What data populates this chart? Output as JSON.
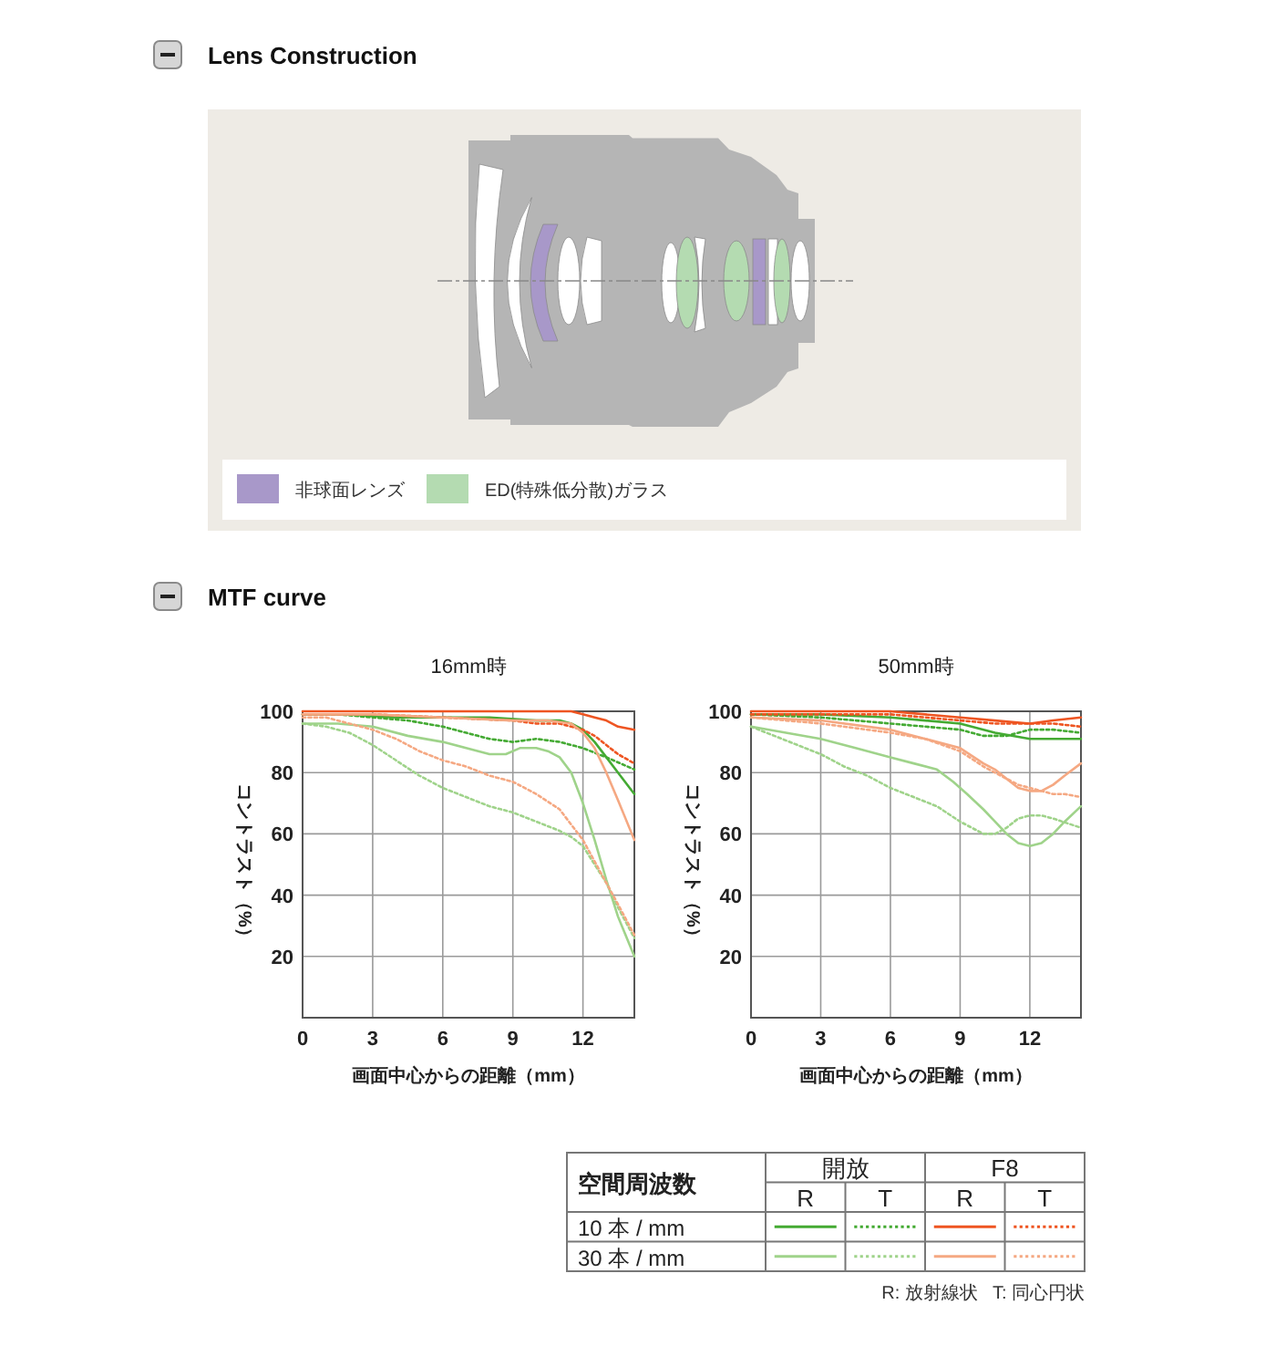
{
  "chart_data": [
    {
      "type": "other",
      "title": "Lens Construction",
      "annotations": [
        "非球面レンズ",
        "ED(特殊低分散)ガラス"
      ]
    },
    {
      "type": "line",
      "title": "MTF curve",
      "subtitle": "16mm時",
      "xlabel": "画面中心からの距離（mm）",
      "ylabel": "コントラスト（%）",
      "xlim": [
        0,
        14.2
      ],
      "ylim": [
        0,
        100
      ],
      "xticks": [
        0,
        3,
        6,
        9,
        12
      ],
      "yticks": [
        20,
        40,
        60,
        80,
        100
      ],
      "grid": true,
      "series": [
        {
          "color": "#44aa33",
          "line_style": "solid",
          "x": [
            0,
            2,
            4,
            6,
            8,
            10,
            11,
            11.5,
            12,
            12.5,
            13,
            13.5,
            14.2
          ],
          "values": [
            99,
            99,
            98,
            98,
            98,
            97,
            97,
            96,
            94,
            90,
            85,
            80,
            73
          ]
        },
        {
          "color": "#44aa33",
          "line_style": "dotted",
          "x": [
            0,
            1.5,
            3,
            4.5,
            6,
            7,
            8,
            9,
            10,
            11,
            12,
            13,
            14.2
          ],
          "values": [
            99,
            99,
            98,
            97,
            95,
            93,
            91,
            90,
            91,
            90,
            88,
            85,
            81
          ]
        },
        {
          "color": "#ee5522",
          "line_style": "solid",
          "x": [
            0,
            3,
            6,
            9,
            11,
            11.5,
            12,
            12.5,
            13,
            13.5,
            14.2
          ],
          "values": [
            100,
            100,
            100,
            100,
            100,
            100,
            99,
            98,
            97,
            95,
            94
          ]
        },
        {
          "color": "#ee5522",
          "line_style": "dotted",
          "x": [
            0,
            3,
            6,
            9,
            10,
            11,
            11.5,
            12,
            12.5,
            13,
            13.5,
            14.2
          ],
          "values": [
            99,
            99,
            98,
            97,
            96,
            96,
            95,
            94,
            92,
            89,
            86,
            83
          ]
        },
        {
          "color": "#9fd38a",
          "line_style": "solid",
          "x": [
            0,
            1.5,
            3,
            4.5,
            6,
            7,
            8,
            8.7,
            9.3,
            10,
            10.5,
            11,
            11.5,
            12,
            12.5,
            13,
            13.5,
            14.2
          ],
          "values": [
            96,
            96,
            95,
            92,
            90,
            88,
            86,
            86,
            88,
            88,
            87,
            85,
            80,
            70,
            58,
            45,
            33,
            20
          ]
        },
        {
          "color": "#9fd38a",
          "line_style": "dotted",
          "x": [
            0,
            1,
            2,
            3,
            4,
            5,
            6,
            7,
            8,
            9,
            10,
            11,
            11.5,
            12,
            12.5,
            13,
            13.5,
            14.2
          ],
          "values": [
            96,
            95,
            93,
            89,
            84,
            79,
            75,
            72,
            69,
            67,
            64,
            61,
            59,
            56,
            50,
            44,
            36,
            26
          ]
        },
        {
          "color": "#f5a882",
          "line_style": "solid",
          "x": [
            0,
            3,
            6,
            9,
            10.5,
            11.5,
            12,
            12.5,
            13,
            13.5,
            14.2
          ],
          "values": [
            99,
            99,
            98,
            97,
            97,
            96,
            93,
            88,
            80,
            71,
            58
          ]
        },
        {
          "color": "#f5a882",
          "line_style": "dotted",
          "x": [
            0,
            1,
            2,
            3,
            4,
            5,
            6,
            7,
            8,
            9,
            10,
            11,
            11.5,
            12,
            12.5,
            13,
            13.5,
            14.2
          ],
          "values": [
            98,
            98,
            96,
            94,
            91,
            87,
            84,
            82,
            79,
            77,
            73,
            68,
            63,
            58,
            51,
            44,
            37,
            27
          ]
        }
      ]
    },
    {
      "type": "line",
      "subtitle": "50mm時",
      "xlabel": "画面中心からの距離（mm）",
      "ylabel": "コントラスト（%）",
      "xlim": [
        0,
        14.2
      ],
      "ylim": [
        0,
        100
      ],
      "xticks": [
        0,
        3,
        6,
        9,
        12
      ],
      "yticks": [
        20,
        40,
        60,
        80,
        100
      ],
      "grid": true,
      "series": [
        {
          "color": "#44aa33",
          "line_style": "solid",
          "x": [
            0,
            3,
            6,
            9,
            10.5,
            12,
            13,
            14.2
          ],
          "values": [
            99,
            99,
            98,
            96,
            93,
            91,
            91,
            91
          ]
        },
        {
          "color": "#44aa33",
          "line_style": "dotted",
          "x": [
            0,
            3,
            6,
            9,
            10,
            11,
            12,
            13,
            14.2
          ],
          "values": [
            99,
            98,
            96,
            94,
            92,
            92,
            94,
            94,
            93
          ]
        },
        {
          "color": "#ee5522",
          "line_style": "solid",
          "x": [
            0,
            3,
            6,
            9,
            10.5,
            12,
            13,
            14.2
          ],
          "values": [
            100,
            100,
            100,
            98,
            97,
            96,
            97,
            98
          ]
        },
        {
          "color": "#ee5522",
          "line_style": "dotted",
          "x": [
            0,
            3,
            6,
            9,
            10.5,
            12,
            13,
            14.2
          ],
          "values": [
            99,
            99,
            99,
            97,
            96,
            96,
            96,
            95
          ]
        },
        {
          "color": "#9fd38a",
          "line_style": "solid",
          "x": [
            0,
            1.5,
            3,
            4.5,
            6,
            7,
            8,
            8.7,
            9.3,
            10,
            10.5,
            11,
            11.5,
            12,
            12.5,
            13,
            13.5,
            14.2
          ],
          "values": [
            95,
            93,
            91,
            88,
            85,
            83,
            81,
            77,
            73,
            68,
            64,
            60,
            57,
            56,
            57,
            60,
            64,
            69
          ]
        },
        {
          "color": "#9fd38a",
          "line_style": "dotted",
          "x": [
            0,
            1,
            2,
            3,
            4,
            5,
            6,
            7,
            8,
            9,
            9.5,
            10,
            10.5,
            11,
            11.5,
            12,
            12.5,
            13,
            14.2
          ],
          "values": [
            95,
            92,
            89,
            86,
            82,
            79,
            75,
            72,
            69,
            64,
            62,
            60,
            60,
            62,
            65,
            66,
            66,
            65,
            62
          ]
        },
        {
          "color": "#f5a882",
          "line_style": "solid",
          "x": [
            0,
            3,
            6,
            7.5,
            9,
            10,
            10.5,
            11,
            11.5,
            12,
            12.5,
            13,
            13.5,
            14.2
          ],
          "values": [
            98,
            97,
            94,
            91,
            88,
            83,
            81,
            78,
            75,
            74,
            74,
            76,
            79,
            83
          ]
        },
        {
          "color": "#f5a882",
          "line_style": "dotted",
          "x": [
            0,
            3,
            6,
            7.5,
            9,
            10,
            10.5,
            11,
            11.5,
            12,
            12.5,
            13,
            13.5,
            14.2
          ],
          "values": [
            98,
            96,
            93,
            91,
            87,
            82,
            80,
            78,
            76,
            75,
            74,
            73,
            73,
            72
          ]
        }
      ]
    },
    {
      "type": "other",
      "legend_title": "空間周波数",
      "annotations": [
        "開放",
        "F8",
        "R",
        "T",
        "R",
        "T",
        "10 本 / mm",
        "30 本 / mm",
        "R: 放射線状",
        "T: 同心円状"
      ]
    }
  ]
}
